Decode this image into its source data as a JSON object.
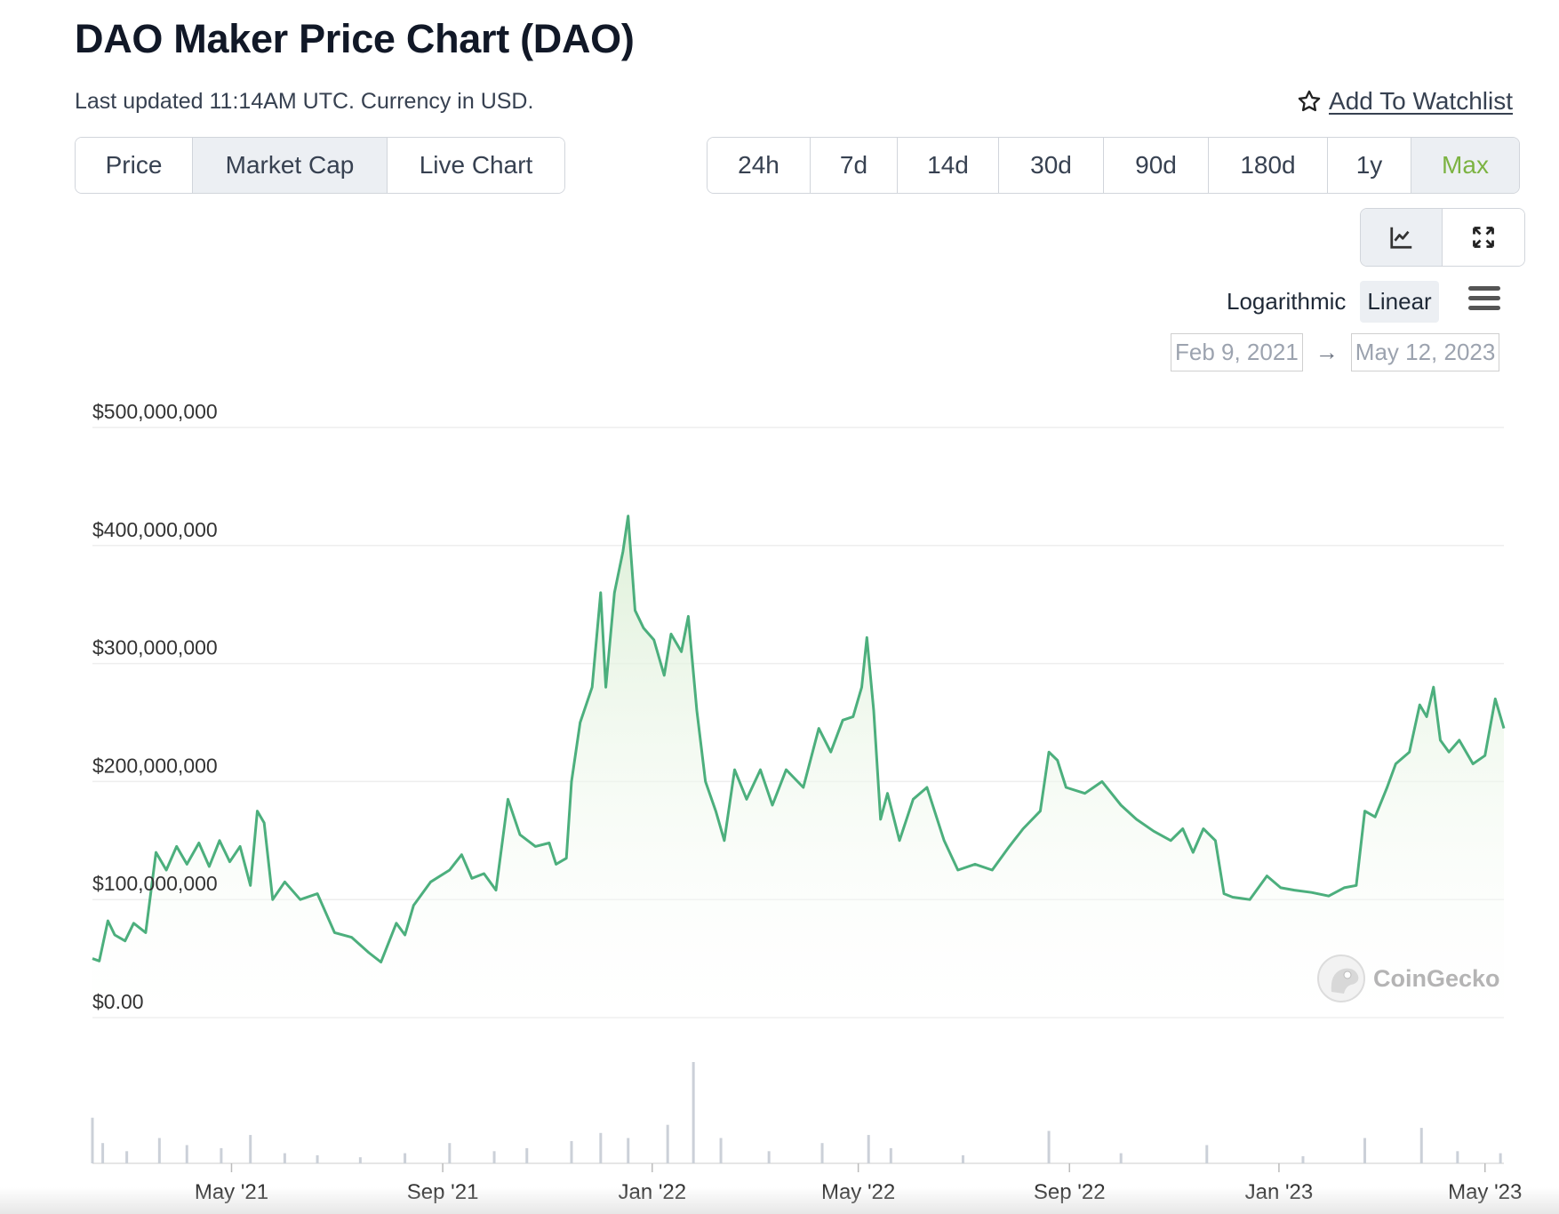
{
  "header": {
    "title": "DAO Maker Price Chart (DAO)",
    "subtitle": "Last updated 11:14AM UTC. Currency in USD.",
    "watchlist_label": "Add To Watchlist",
    "watchlist_icon": "star-icon"
  },
  "tabs": [
    {
      "label": "Price",
      "active": false
    },
    {
      "label": "Market Cap",
      "active": true
    },
    {
      "label": "Live Chart",
      "active": false
    }
  ],
  "ranges": [
    {
      "label": "24h",
      "active": false
    },
    {
      "label": "7d",
      "active": false
    },
    {
      "label": "14d",
      "active": false
    },
    {
      "label": "30d",
      "active": false
    },
    {
      "label": "90d",
      "active": false
    },
    {
      "label": "180d",
      "active": false
    },
    {
      "label": "1y",
      "active": false
    },
    {
      "label": "Max",
      "active": true
    }
  ],
  "tools": [
    {
      "icon": "line-chart-icon",
      "active": true
    },
    {
      "icon": "expand-icon",
      "active": false
    }
  ],
  "scale": {
    "options": [
      "Logarithmic",
      "Linear"
    ],
    "selected": "Linear",
    "menu_icon": "hamburger-menu-icon"
  },
  "date_range": {
    "from": "Feb 9, 2021",
    "to": "May 12, 2023",
    "arrow": "→"
  },
  "watermark": "CoinGecko",
  "colors": {
    "line": "#4caf7d",
    "fill_top": "#dcefd6",
    "accent": "#7cb342",
    "volume": "#cbd0d8",
    "grid": "#eeeeee"
  },
  "chart_data": {
    "type": "area",
    "y_unit": "USD market cap",
    "ylim": [
      0,
      500000000
    ],
    "yticks": [
      "$0.00",
      "$100,000,000",
      "$200,000,000",
      "$300,000,000",
      "$400,000,000",
      "$500,000,000"
    ],
    "xticks": [
      "May '21",
      "Sep '21",
      "Jan '22",
      "May '22",
      "Sep '22",
      "Jan '23",
      "May '23"
    ],
    "xtick_dates": [
      "2021-05-01",
      "2021-09-01",
      "2022-01-01",
      "2022-05-01",
      "2022-09-01",
      "2023-01-01",
      "2023-05-01"
    ],
    "xlim": [
      "2021-02-09",
      "2023-05-12"
    ],
    "grid": true,
    "series": [
      {
        "values": [
          [
            "2021-02-09",
            50000000
          ],
          [
            "2021-02-13",
            48000000
          ],
          [
            "2021-02-18",
            82000000
          ],
          [
            "2021-02-22",
            70000000
          ],
          [
            "2021-02-28",
            65000000
          ],
          [
            "2021-03-05",
            80000000
          ],
          [
            "2021-03-12",
            72000000
          ],
          [
            "2021-03-18",
            140000000
          ],
          [
            "2021-03-24",
            125000000
          ],
          [
            "2021-03-30",
            145000000
          ],
          [
            "2021-04-05",
            130000000
          ],
          [
            "2021-04-12",
            148000000
          ],
          [
            "2021-04-18",
            128000000
          ],
          [
            "2021-04-24",
            150000000
          ],
          [
            "2021-04-30",
            132000000
          ],
          [
            "2021-05-06",
            145000000
          ],
          [
            "2021-05-12",
            112000000
          ],
          [
            "2021-05-16",
            175000000
          ],
          [
            "2021-05-20",
            165000000
          ],
          [
            "2021-05-25",
            100000000
          ],
          [
            "2021-06-01",
            115000000
          ],
          [
            "2021-06-10",
            100000000
          ],
          [
            "2021-06-20",
            105000000
          ],
          [
            "2021-06-30",
            72000000
          ],
          [
            "2021-07-10",
            68000000
          ],
          [
            "2021-07-20",
            55000000
          ],
          [
            "2021-07-27",
            47000000
          ],
          [
            "2021-08-05",
            80000000
          ],
          [
            "2021-08-10",
            70000000
          ],
          [
            "2021-08-15",
            95000000
          ],
          [
            "2021-08-25",
            115000000
          ],
          [
            "2021-09-05",
            125000000
          ],
          [
            "2021-09-12",
            138000000
          ],
          [
            "2021-09-18",
            118000000
          ],
          [
            "2021-09-25",
            122000000
          ],
          [
            "2021-10-02",
            108000000
          ],
          [
            "2021-10-09",
            185000000
          ],
          [
            "2021-10-16",
            155000000
          ],
          [
            "2021-10-25",
            145000000
          ],
          [
            "2021-11-02",
            148000000
          ],
          [
            "2021-11-06",
            130000000
          ],
          [
            "2021-11-12",
            135000000
          ],
          [
            "2021-11-15",
            200000000
          ],
          [
            "2021-11-20",
            250000000
          ],
          [
            "2021-11-27",
            280000000
          ],
          [
            "2021-12-02",
            360000000
          ],
          [
            "2021-12-05",
            280000000
          ],
          [
            "2021-12-10",
            360000000
          ],
          [
            "2021-12-15",
            395000000
          ],
          [
            "2021-12-18",
            425000000
          ],
          [
            "2021-12-22",
            345000000
          ],
          [
            "2021-12-27",
            330000000
          ],
          [
            "2022-01-02",
            320000000
          ],
          [
            "2022-01-08",
            290000000
          ],
          [
            "2022-01-12",
            325000000
          ],
          [
            "2022-01-18",
            310000000
          ],
          [
            "2022-01-22",
            340000000
          ],
          [
            "2022-01-27",
            260000000
          ],
          [
            "2022-02-01",
            200000000
          ],
          [
            "2022-02-07",
            175000000
          ],
          [
            "2022-02-12",
            150000000
          ],
          [
            "2022-02-18",
            210000000
          ],
          [
            "2022-02-25",
            185000000
          ],
          [
            "2022-03-05",
            210000000
          ],
          [
            "2022-03-12",
            180000000
          ],
          [
            "2022-03-20",
            210000000
          ],
          [
            "2022-03-30",
            195000000
          ],
          [
            "2022-04-08",
            245000000
          ],
          [
            "2022-04-15",
            225000000
          ],
          [
            "2022-04-22",
            252000000
          ],
          [
            "2022-04-28",
            255000000
          ],
          [
            "2022-05-03",
            280000000
          ],
          [
            "2022-05-06",
            322000000
          ],
          [
            "2022-05-10",
            260000000
          ],
          [
            "2022-05-14",
            168000000
          ],
          [
            "2022-05-18",
            190000000
          ],
          [
            "2022-05-25",
            150000000
          ],
          [
            "2022-06-02",
            185000000
          ],
          [
            "2022-06-10",
            195000000
          ],
          [
            "2022-06-20",
            150000000
          ],
          [
            "2022-06-28",
            125000000
          ],
          [
            "2022-07-08",
            130000000
          ],
          [
            "2022-07-18",
            125000000
          ],
          [
            "2022-07-28",
            145000000
          ],
          [
            "2022-08-05",
            160000000
          ],
          [
            "2022-08-15",
            175000000
          ],
          [
            "2022-08-20",
            225000000
          ],
          [
            "2022-08-25",
            218000000
          ],
          [
            "2022-08-30",
            195000000
          ],
          [
            "2022-09-10",
            190000000
          ],
          [
            "2022-09-20",
            200000000
          ],
          [
            "2022-10-01",
            180000000
          ],
          [
            "2022-10-10",
            168000000
          ],
          [
            "2022-10-20",
            158000000
          ],
          [
            "2022-10-30",
            150000000
          ],
          [
            "2022-11-06",
            160000000
          ],
          [
            "2022-11-12",
            140000000
          ],
          [
            "2022-11-18",
            160000000
          ],
          [
            "2022-11-25",
            150000000
          ],
          [
            "2022-11-30",
            105000000
          ],
          [
            "2022-12-05",
            102000000
          ],
          [
            "2022-12-15",
            100000000
          ],
          [
            "2022-12-25",
            120000000
          ],
          [
            "2023-01-02",
            110000000
          ],
          [
            "2023-01-10",
            108000000
          ],
          [
            "2023-01-20",
            106000000
          ],
          [
            "2023-01-30",
            103000000
          ],
          [
            "2023-02-08",
            110000000
          ],
          [
            "2023-02-15",
            112000000
          ],
          [
            "2023-02-20",
            175000000
          ],
          [
            "2023-02-26",
            170000000
          ],
          [
            "2023-03-05",
            195000000
          ],
          [
            "2023-03-10",
            215000000
          ],
          [
            "2023-03-18",
            225000000
          ],
          [
            "2023-03-24",
            265000000
          ],
          [
            "2023-03-28",
            255000000
          ],
          [
            "2023-04-01",
            280000000
          ],
          [
            "2023-04-05",
            235000000
          ],
          [
            "2023-04-10",
            225000000
          ],
          [
            "2023-04-16",
            235000000
          ],
          [
            "2023-04-24",
            215000000
          ],
          [
            "2023-05-01",
            222000000
          ],
          [
            "2023-05-07",
            270000000
          ],
          [
            "2023-05-12",
            245000000
          ]
        ]
      }
    ],
    "volume": {
      "ylim": [
        0,
        1
      ],
      "values": [
        [
          "2021-02-09",
          0.45
        ],
        [
          "2021-02-15",
          0.2
        ],
        [
          "2021-03-01",
          0.12
        ],
        [
          "2021-03-20",
          0.25
        ],
        [
          "2021-04-05",
          0.18
        ],
        [
          "2021-04-25",
          0.15
        ],
        [
          "2021-05-12",
          0.28
        ],
        [
          "2021-06-01",
          0.1
        ],
        [
          "2021-06-20",
          0.08
        ],
        [
          "2021-07-15",
          0.06
        ],
        [
          "2021-08-10",
          0.1
        ],
        [
          "2021-09-05",
          0.2
        ],
        [
          "2021-10-01",
          0.12
        ],
        [
          "2021-10-20",
          0.15
        ],
        [
          "2021-11-15",
          0.22
        ],
        [
          "2021-12-02",
          0.3
        ],
        [
          "2021-12-18",
          0.25
        ],
        [
          "2022-01-10",
          0.38
        ],
        [
          "2022-01-25",
          1.0
        ],
        [
          "2022-02-10",
          0.25
        ],
        [
          "2022-03-10",
          0.12
        ],
        [
          "2022-04-10",
          0.2
        ],
        [
          "2022-05-07",
          0.28
        ],
        [
          "2022-05-20",
          0.15
        ],
        [
          "2022-07-01",
          0.08
        ],
        [
          "2022-08-20",
          0.32
        ],
        [
          "2022-10-01",
          0.1
        ],
        [
          "2022-11-20",
          0.18
        ],
        [
          "2023-01-15",
          0.07
        ],
        [
          "2023-02-20",
          0.25
        ],
        [
          "2023-03-25",
          0.35
        ],
        [
          "2023-04-15",
          0.12
        ],
        [
          "2023-05-10",
          0.1
        ]
      ]
    }
  }
}
